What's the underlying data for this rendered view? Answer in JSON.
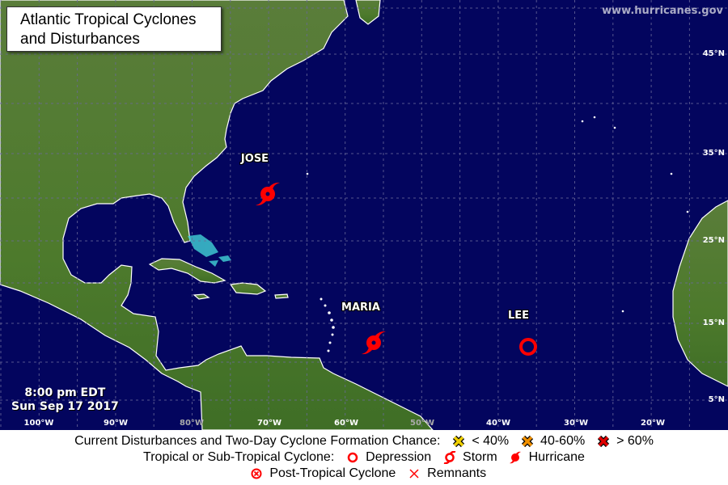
{
  "title": {
    "line1": "Atlantic Tropical Cyclones",
    "line2": "and Disturbances"
  },
  "watermark": "www.hurricanes.gov",
  "timestamp": {
    "time": "8:00 pm EDT",
    "date": "Sun Sep 17 2017"
  },
  "colors": {
    "ocean": "#03055e",
    "land": "#4f7a2e",
    "storm_red": "#ff0000",
    "low_chance": "#f0d000",
    "mid_chance": "#f09000",
    "high_chance": "#e00000"
  },
  "longitude_labels": [
    "100°W",
    "90°W",
    "80°W",
    "70°W",
    "60°W",
    "50°W",
    "40°W",
    "30°W",
    "20°W"
  ],
  "latitude_labels": [
    "45°N",
    "35°N",
    "25°N",
    "15°N",
    "5°N"
  ],
  "storms": [
    {
      "name": "JOSE",
      "type": "hurricane",
      "icon": "hurricane-icon"
    },
    {
      "name": "MARIA",
      "type": "hurricane",
      "icon": "hurricane-icon"
    },
    {
      "name": "LEE",
      "type": "depression",
      "icon": "depression-icon"
    }
  ],
  "legend": {
    "row1": {
      "label": "Current Disturbances and Two-Day Cyclone Formation Chance:",
      "low": "< 40%",
      "mid": "40-60%",
      "high": "> 60%"
    },
    "row2": {
      "label": "Tropical or Sub-Tropical Cyclone:",
      "depression": "Depression",
      "storm": "Storm",
      "hurricane": "Hurricane"
    },
    "row3": {
      "post_tropical": "Post-Tropical Cyclone",
      "remnants": "Remnants"
    }
  }
}
